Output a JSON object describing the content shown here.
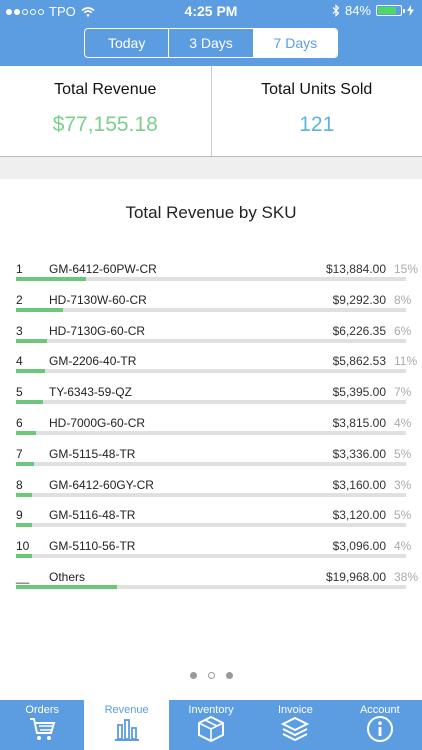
{
  "status_bar": {
    "carrier": "TPO",
    "time": "4:25 PM",
    "battery": "84%",
    "battery_level": 0.84
  },
  "range_tabs": [
    {
      "label": "Today"
    },
    {
      "label": "3 Days"
    },
    {
      "label": "7 Days"
    }
  ],
  "selected_range": "7 Days",
  "summary": {
    "revenue_label": "Total Revenue",
    "revenue_value": "$77,155.18",
    "units_label": "Total Units Sold",
    "units_value": "121"
  },
  "chart": {
    "title": "Total Revenue by SKU",
    "rows": [
      {
        "rank": "1",
        "sku": "GM-6412-60PW-CR",
        "amount": "$13,884.00",
        "pct": "15%",
        "bar": 0.18
      },
      {
        "rank": "2",
        "sku": "HD-7130W-60-CR",
        "amount": "$9,292.30",
        "pct": "8%",
        "bar": 0.12
      },
      {
        "rank": "3",
        "sku": "HD-7130G-60-CR",
        "amount": "$6,226.35",
        "pct": "6%",
        "bar": 0.08
      },
      {
        "rank": "4",
        "sku": "GM-2206-40-TR",
        "amount": "$5,862.53",
        "pct": "11%",
        "bar": 0.075
      },
      {
        "rank": "5",
        "sku": "TY-6343-59-QZ",
        "amount": "$5,395.00",
        "pct": "7%",
        "bar": 0.07
      },
      {
        "rank": "6",
        "sku": "HD-7000G-60-CR",
        "amount": "$3,815.00",
        "pct": "4%",
        "bar": 0.05
      },
      {
        "rank": "7",
        "sku": "GM-5115-48-TR",
        "amount": "$3,336.00",
        "pct": "5%",
        "bar": 0.045
      },
      {
        "rank": "8",
        "sku": "GM-6412-60GY-CR",
        "amount": "$3,160.00",
        "pct": "3%",
        "bar": 0.04
      },
      {
        "rank": "9",
        "sku": "GM-5116-48-TR",
        "amount": "$3,120.00",
        "pct": "5%",
        "bar": 0.04
      },
      {
        "rank": "10",
        "sku": "GM-5110-56-TR",
        "amount": "$3,096.00",
        "pct": "4%",
        "bar": 0.04
      },
      {
        "rank": "__",
        "sku": "Others",
        "amount": "$19,968.00",
        "pct": "38%",
        "bar": 0.26
      }
    ]
  },
  "page_indicator": {
    "count": 3,
    "active": 0
  },
  "tabbar": [
    {
      "label": "Orders",
      "icon": "cart-icon"
    },
    {
      "label": "Revenue",
      "icon": "bar-chart-icon",
      "active": true
    },
    {
      "label": "Inventory",
      "icon": "box-icon"
    },
    {
      "label": "Invoice",
      "icon": "layers-icon"
    },
    {
      "label": "Account",
      "icon": "info-icon"
    }
  ]
}
